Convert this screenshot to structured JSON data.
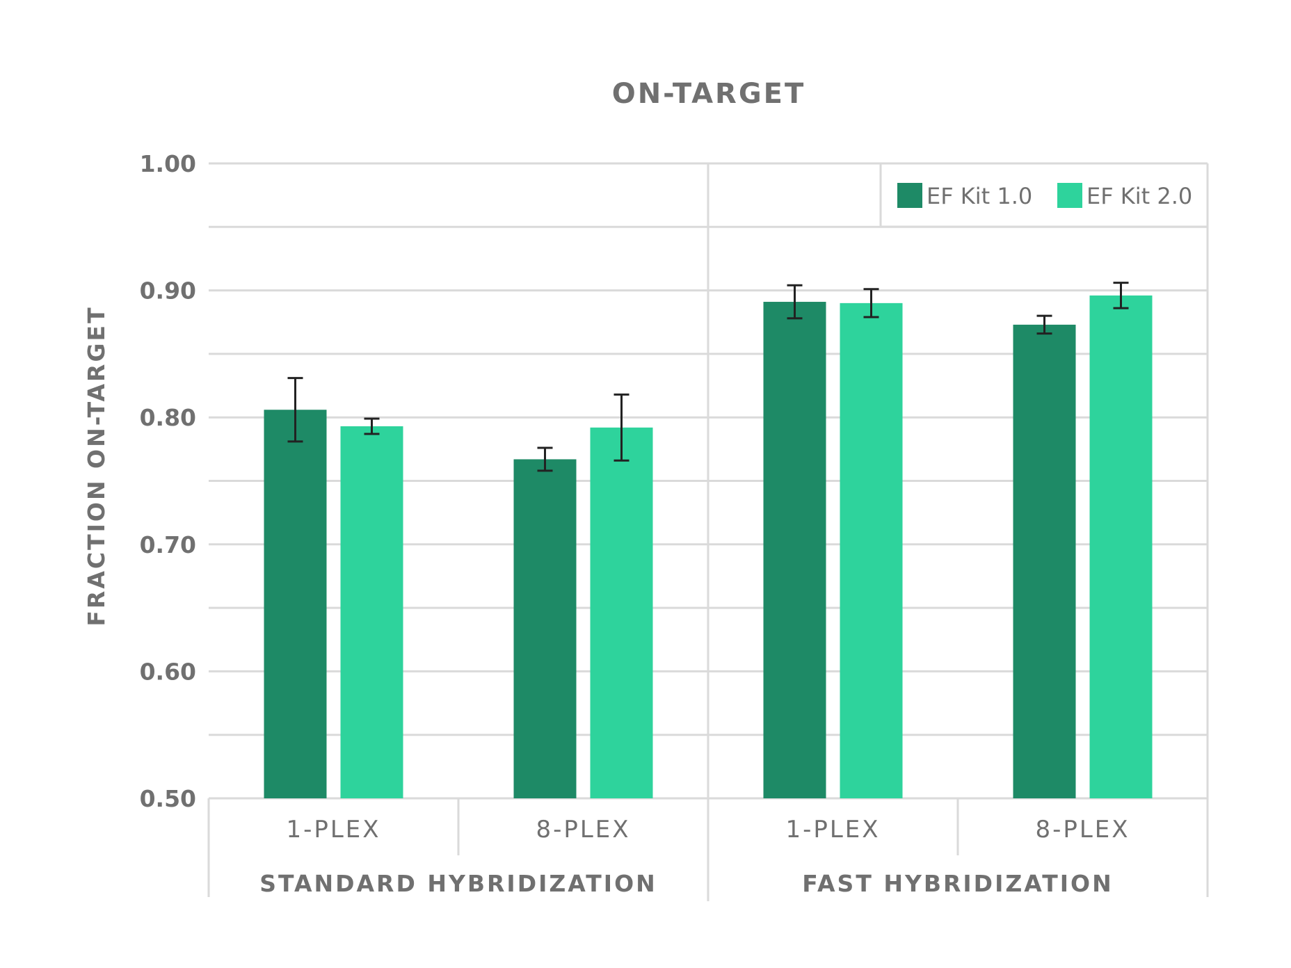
{
  "chart_data": {
    "type": "bar",
    "title": "ON-TARGET",
    "ylabel": "FRACTION ON-TARGET",
    "ylim": [
      0.5,
      1.0
    ],
    "yticks": [
      "1.00",
      "0.90",
      "0.80",
      "0.70",
      "0.60",
      "0.50"
    ],
    "ytick_values": [
      1.0,
      0.9,
      0.8,
      0.7,
      0.6,
      0.5
    ],
    "grid": true,
    "legend_position": "top-right",
    "categories": [
      "1-PLEX",
      "8-PLEX",
      "1-PLEX",
      "8-PLEX"
    ],
    "groups": [
      {
        "label": "STANDARD HYBRIDIZATION",
        "categories": [
          0,
          1
        ]
      },
      {
        "label": "FAST HYBRIDIZATION",
        "categories": [
          2,
          3
        ]
      }
    ],
    "series": [
      {
        "name": "EF Kit 1.0",
        "color": "#1e8a66",
        "values": [
          0.806,
          0.767,
          0.891,
          0.873
        ],
        "errors": [
          0.025,
          0.009,
          0.013,
          0.007
        ]
      },
      {
        "name": "EF Kit 2.0",
        "color": "#2ed39c",
        "values": [
          0.793,
          0.792,
          0.89,
          0.896
        ],
        "errors": [
          0.006,
          0.026,
          0.011,
          0.01
        ]
      }
    ],
    "colors": {
      "grid": "#dadada",
      "text": "#707070",
      "error_bar": "#222222"
    }
  }
}
